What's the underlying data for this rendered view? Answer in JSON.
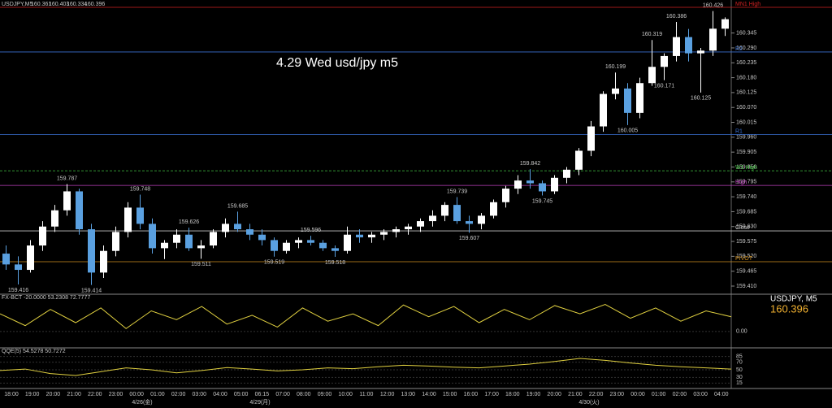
{
  "chart_data": {
    "type": "candlestick",
    "symbol": "USDJPY,M5",
    "title": "4.29 Wed usd/jpy m5",
    "panel_symbol": "USDJPY, M5",
    "up_color": "#ffffff",
    "down_color": "#5aa0e0",
    "ylim": [
      159.38,
      160.467
    ],
    "yticks": [
      {
        "value": 159.41,
        "label": "159.410"
      },
      {
        "value": 159.465,
        "label": "159.465"
      },
      {
        "value": 159.52,
        "label": "159.520"
      },
      {
        "value": 159.575,
        "label": "159.575"
      },
      {
        "value": 159.63,
        "label": "159.630"
      },
      {
        "value": 159.685,
        "label": "159.685"
      },
      {
        "value": 159.74,
        "label": "159.740"
      },
      {
        "value": 159.795,
        "label": "159.795"
      },
      {
        "value": 159.85,
        "label": "159.850"
      },
      {
        "value": 159.905,
        "label": "159.905"
      },
      {
        "value": 159.96,
        "label": "159.960"
      },
      {
        "value": 160.015,
        "label": "160.015"
      },
      {
        "value": 160.07,
        "label": "160.070"
      },
      {
        "value": 160.125,
        "label": "160.125"
      },
      {
        "value": 160.18,
        "label": "160.180"
      },
      {
        "value": 160.235,
        "label": "160.235"
      },
      {
        "value": 160.29,
        "label": "160.290"
      },
      {
        "value": 160.345,
        "label": "160.345"
      }
    ],
    "open": [
      159.53,
      159.49,
      159.47,
      159.56,
      159.63,
      159.69,
      159.76,
      159.62,
      159.46,
      159.54,
      159.61,
      159.7,
      159.64,
      159.55,
      159.57,
      159.6,
      159.55,
      159.56,
      159.61,
      159.64,
      159.62,
      159.6,
      159.58,
      159.54,
      159.57,
      159.58,
      159.57,
      159.55,
      159.54,
      159.6,
      159.59,
      159.6,
      159.61,
      159.62,
      159.63,
      159.65,
      159.67,
      159.71,
      159.65,
      159.64,
      159.67,
      159.72,
      159.77,
      159.8,
      159.79,
      159.76,
      159.81,
      159.84,
      159.91,
      160.0,
      160.12,
      160.14,
      160.05,
      160.16,
      160.22,
      160.26,
      160.33,
      160.27,
      160.28,
      160.361
    ],
    "high": [
      159.56,
      159.52,
      159.58,
      159.65,
      159.71,
      159.787,
      159.77,
      159.64,
      159.56,
      159.63,
      159.72,
      159.748,
      159.66,
      159.58,
      159.62,
      159.626,
      159.58,
      159.62,
      159.66,
      159.685,
      159.64,
      159.62,
      159.59,
      159.58,
      159.59,
      159.596,
      159.58,
      159.56,
      159.63,
      159.62,
      159.61,
      159.62,
      159.63,
      159.64,
      159.66,
      159.69,
      159.72,
      159.739,
      159.67,
      159.68,
      159.73,
      159.78,
      159.82,
      159.842,
      159.8,
      159.82,
      159.85,
      159.92,
      160.02,
      160.13,
      160.199,
      160.16,
      160.18,
      160.319,
      160.27,
      160.386,
      160.36,
      160.29,
      160.426,
      160.403
    ],
    "low": [
      159.47,
      159.416,
      159.46,
      159.54,
      159.61,
      159.67,
      159.6,
      159.414,
      159.44,
      159.52,
      159.59,
      159.62,
      159.53,
      159.51,
      159.55,
      159.54,
      159.511,
      159.55,
      159.59,
      159.61,
      159.58,
      159.56,
      159.519,
      159.53,
      159.55,
      159.56,
      159.54,
      159.518,
      159.53,
      159.57,
      159.57,
      159.58,
      159.59,
      159.6,
      159.61,
      159.63,
      159.65,
      159.64,
      159.607,
      159.62,
      159.66,
      159.7,
      159.75,
      159.77,
      159.745,
      159.75,
      159.79,
      159.82,
      159.89,
      159.98,
      160.1,
      160.005,
      160.03,
      160.15,
      160.171,
      160.24,
      160.24,
      160.125,
      160.26,
      160.334
    ],
    "close": [
      159.49,
      159.47,
      159.56,
      159.63,
      159.69,
      159.76,
      159.62,
      159.46,
      159.54,
      159.61,
      159.7,
      159.64,
      159.55,
      159.57,
      159.6,
      159.55,
      159.56,
      159.61,
      159.64,
      159.62,
      159.6,
      159.58,
      159.54,
      159.57,
      159.58,
      159.57,
      159.55,
      159.54,
      159.6,
      159.59,
      159.6,
      159.61,
      159.62,
      159.63,
      159.65,
      159.67,
      159.71,
      159.65,
      159.64,
      159.67,
      159.72,
      159.77,
      159.8,
      159.79,
      159.76,
      159.81,
      159.84,
      159.91,
      160.0,
      160.12,
      160.14,
      160.05,
      160.16,
      160.22,
      160.26,
      160.33,
      160.27,
      160.28,
      160.361,
      160.396
    ],
    "annotations_high": [
      159.787,
      159.748,
      159.626,
      159.685,
      159.596,
      159.739,
      159.842,
      160.199,
      160.319,
      160.386,
      160.426
    ],
    "annotations_low": [
      159.416,
      159.414,
      159.511,
      159.519,
      159.518,
      159.607,
      159.745,
      160.005,
      160.171,
      160.125
    ],
    "levels": [
      {
        "name": "MN1 High",
        "color": "#d02020",
        "value": 160.44
      },
      {
        "name": "R2",
        "color": "#3a6fd0",
        "value": 160.275
      },
      {
        "name": "R1",
        "color": "#3a6fd0",
        "value": 159.97
      },
      {
        "name": "W1 High",
        "color": "#40c040",
        "value": 159.836
      },
      {
        "name": "High",
        "color": "#c040c0",
        "value": 159.782
      },
      {
        "name": "Close",
        "color": "#c8c8c8",
        "value": 159.614
      },
      {
        "name": "PIVOT",
        "color": "#d09020",
        "value": 159.5
      }
    ],
    "time_labels": [
      "18:00",
      "19:00",
      "20:00",
      "21:00",
      "22:00",
      "23:00",
      "00:00",
      "01:00",
      "02:00",
      "03:00",
      "04:00",
      "05:00",
      "06:15",
      "07:00",
      "08:00",
      "09:00",
      "10:00",
      "11:00",
      "12:00",
      "13:00",
      "14:00",
      "15:00",
      "16:00",
      "17:00",
      "18:00",
      "19:00",
      "20:00",
      "21:00",
      "22:00",
      "23:00",
      "00:00",
      "01:00",
      "02:00",
      "03:00",
      "04:00"
    ],
    "dates": [
      "4/26(金)",
      "4/29(月)",
      "4/30(火)"
    ],
    "osc": {
      "title": "FX-BCT -20.0000 53.2308 72.7777",
      "color": "#e0d040",
      "ylim": [
        -50,
        110
      ],
      "yticks": [
        {
          "value": 0,
          "label": "0.00"
        }
      ],
      "values": [
        60,
        20,
        75,
        30,
        80,
        10,
        70,
        40,
        85,
        25,
        55,
        15,
        80,
        35,
        60,
        20,
        90,
        50,
        85,
        30,
        75,
        40,
        88,
        60,
        92,
        45,
        80,
        35,
        70,
        50
      ]
    },
    "qqe": {
      "title": "QQE(5) 54.5278 50.7272",
      "color": "#e0d040",
      "ylim": [
        5,
        95
      ],
      "yticks": [
        85,
        70,
        50,
        30,
        15
      ],
      "values": [
        48,
        52,
        40,
        35,
        45,
        55,
        50,
        42,
        48,
        56,
        52,
        47,
        50,
        55,
        53,
        58,
        62,
        60,
        57,
        55,
        60,
        65,
        72,
        80,
        75,
        68,
        62,
        58,
        55,
        52
      ]
    }
  }
}
